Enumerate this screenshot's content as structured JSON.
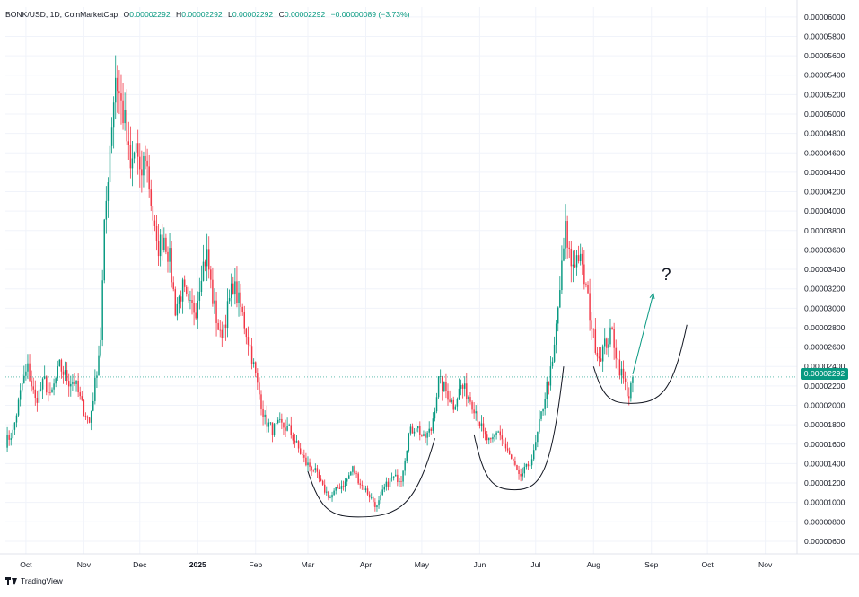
{
  "header": {
    "symbol": "BONK/USD, 1D, CoinMarketCap",
    "o_label": "O",
    "o_value": "0.00002292",
    "h_label": "H",
    "h_value": "0.00002292",
    "l_label": "L",
    "l_value": "0.00002292",
    "c_label": "C",
    "c_value": "0.00002292",
    "change": "−0.00000089 (−3.73%)"
  },
  "footer": {
    "brand": "TradingView"
  },
  "annotation": {
    "question_mark": "?"
  },
  "colors": {
    "up": "#089981",
    "down": "#f23645",
    "grid": "#f0f3fa",
    "text": "#131722",
    "annotation": "#089981"
  },
  "chart_data": {
    "type": "candlestick",
    "title": "BONK/USD, 1D, CoinMarketCap",
    "y_axis": {
      "position": "right",
      "ticks": [
        "0.00006000",
        "0.00005800",
        "0.00005600",
        "0.00005400",
        "0.00005200",
        "0.00005000",
        "0.00004800",
        "0.00004600",
        "0.00004400",
        "0.00004200",
        "0.00004000",
        "0.00003800",
        "0.00003600",
        "0.00003400",
        "0.00003200",
        "0.00003000",
        "0.00002800",
        "0.00002600",
        "0.00002400",
        "0.00002200",
        "0.00002000",
        "0.00001800",
        "0.00001600",
        "0.00001400",
        "0.00001200",
        "0.00001000",
        "0.00000800",
        "0.00000600"
      ],
      "ylim": [
        4.7e-06,
        6.1e-05
      ]
    },
    "x_axis": {
      "ticks": [
        "Oct",
        "Nov",
        "Dec",
        "2025",
        "Feb",
        "Mar",
        "Apr",
        "May",
        "Jun",
        "Jul",
        "Aug",
        "Sep",
        "Oct",
        "Nov"
      ],
      "range": [
        "2024-09-20",
        "2025-11-18"
      ]
    },
    "last_price": "0.00002292",
    "anchors": [
      [
        "2024-09-20",
        1.62e-05
      ],
      [
        "2024-09-24",
        1.72e-05
      ],
      [
        "2024-09-29",
        2.22e-05
      ],
      [
        "2024-10-02",
        2.38e-05
      ],
      [
        "2024-10-06",
        2.05e-05
      ],
      [
        "2024-10-11",
        2.25e-05
      ],
      [
        "2024-10-14",
        2.07e-05
      ],
      [
        "2024-10-19",
        2.4e-05
      ],
      [
        "2024-10-24",
        2.25e-05
      ],
      [
        "2024-10-27",
        2.25e-05
      ],
      [
        "2024-10-31",
        2e-05
      ],
      [
        "2024-11-04",
        1.82e-05
      ],
      [
        "2024-11-07",
        2.22e-05
      ],
      [
        "2024-11-10",
        2.7e-05
      ],
      [
        "2024-11-12",
        3.8e-05
      ],
      [
        "2024-11-15",
        4.7e-05
      ],
      [
        "2024-11-18",
        5.4e-05
      ],
      [
        "2024-11-20",
        5.2e-05
      ],
      [
        "2024-11-23",
        4.9e-05
      ],
      [
        "2024-11-26",
        4.4e-05
      ],
      [
        "2024-11-29",
        4.7e-05
      ],
      [
        "2024-12-01",
        4.3e-05
      ],
      [
        "2024-12-04",
        4.6e-05
      ],
      [
        "2024-12-07",
        4.1e-05
      ],
      [
        "2024-12-10",
        3.6e-05
      ],
      [
        "2024-12-14",
        3.75e-05
      ],
      [
        "2024-12-17",
        3.5e-05
      ],
      [
        "2024-12-20",
        3e-05
      ],
      [
        "2024-12-24",
        3.2e-05
      ],
      [
        "2024-12-27",
        3e-05
      ],
      [
        "2024-12-31",
        3e-05
      ],
      [
        "2025-01-03",
        3.4e-05
      ],
      [
        "2025-01-06",
        3.55e-05
      ],
      [
        "2025-01-09",
        3.1e-05
      ],
      [
        "2025-01-13",
        2.7e-05
      ],
      [
        "2025-01-16",
        2.9e-05
      ],
      [
        "2025-01-20",
        3.25e-05
      ],
      [
        "2025-01-24",
        3e-05
      ],
      [
        "2025-01-29",
        2.6e-05
      ],
      [
        "2025-02-02",
        2.2e-05
      ],
      [
        "2025-02-06",
        1.85e-05
      ],
      [
        "2025-02-10",
        1.75e-05
      ],
      [
        "2025-02-14",
        1.8e-05
      ],
      [
        "2025-02-19",
        1.75e-05
      ],
      [
        "2025-02-24",
        1.55e-05
      ],
      [
        "2025-02-28",
        1.4e-05
      ],
      [
        "2025-03-04",
        1.35e-05
      ],
      [
        "2025-03-09",
        1.15e-05
      ],
      [
        "2025-03-13",
        1.05e-05
      ],
      [
        "2025-03-17",
        1.15e-05
      ],
      [
        "2025-03-21",
        1.2e-05
      ],
      [
        "2025-03-25",
        1.35e-05
      ],
      [
        "2025-03-29",
        1.2e-05
      ],
      [
        "2025-04-02",
        1.1e-05
      ],
      [
        "2025-04-07",
        9.5e-06
      ],
      [
        "2025-04-11",
        1.15e-05
      ],
      [
        "2025-04-15",
        1.25e-05
      ],
      [
        "2025-04-20",
        1.25e-05
      ],
      [
        "2025-04-24",
        1.7e-05
      ],
      [
        "2025-04-28",
        1.8e-05
      ],
      [
        "2025-05-02",
        1.65e-05
      ],
      [
        "2025-05-06",
        1.75e-05
      ],
      [
        "2025-05-10",
        2.25e-05
      ],
      [
        "2025-05-14",
        2.15e-05
      ],
      [
        "2025-05-18",
        2e-05
      ],
      [
        "2025-05-22",
        2.2e-05
      ],
      [
        "2025-05-26",
        2.1e-05
      ],
      [
        "2025-05-30",
        1.95e-05
      ],
      [
        "2025-06-03",
        1.7e-05
      ],
      [
        "2025-06-07",
        1.6e-05
      ],
      [
        "2025-06-11",
        1.75e-05
      ],
      [
        "2025-06-15",
        1.55e-05
      ],
      [
        "2025-06-19",
        1.4e-05
      ],
      [
        "2025-06-22",
        1.25e-05
      ],
      [
        "2025-06-26",
        1.35e-05
      ],
      [
        "2025-06-30",
        1.5e-05
      ],
      [
        "2025-07-03",
        1.8e-05
      ],
      [
        "2025-07-07",
        2.2e-05
      ],
      [
        "2025-07-10",
        2.4e-05
      ],
      [
        "2025-07-13",
        3e-05
      ],
      [
        "2025-07-17",
        3.8e-05
      ],
      [
        "2025-07-20",
        3.45e-05
      ],
      [
        "2025-07-24",
        3.55e-05
      ],
      [
        "2025-07-28",
        3.2e-05
      ],
      [
        "2025-08-01",
        2.7e-05
      ],
      [
        "2025-08-04",
        2.5e-05
      ],
      [
        "2025-08-08",
        2.65e-05
      ],
      [
        "2025-08-11",
        2.75e-05
      ],
      [
        "2025-08-14",
        2.45e-05
      ],
      [
        "2025-08-18",
        2.2e-05
      ],
      [
        "2025-08-20",
        2.1e-05
      ],
      [
        "2025-08-22",
        2.29e-05
      ]
    ],
    "patterns": [
      {
        "type": "rounded-bottom",
        "start": [
          "2025-03-01",
          1.32e-05
        ],
        "vertex": [
          "2025-03-28",
          8.5e-06
        ],
        "end": [
          "2025-05-08",
          1.66e-05
        ]
      },
      {
        "type": "rounded-bottom",
        "start": [
          "2025-05-29",
          1.7e-05
        ],
        "vertex": [
          "2025-06-20",
          1.13e-05
        ],
        "end": [
          "2025-07-16",
          2.4e-05
        ]
      },
      {
        "type": "rounded-bottom",
        "start": [
          "2025-08-01",
          2.4e-05
        ],
        "vertex": [
          "2025-08-21",
          2.02e-05
        ],
        "end": [
          "2025-09-20",
          2.83e-05
        ]
      }
    ],
    "projection": {
      "from": [
        "2025-08-22",
        2.32e-05
      ],
      "to": [
        "2025-09-02",
        3.15e-05
      ]
    }
  }
}
